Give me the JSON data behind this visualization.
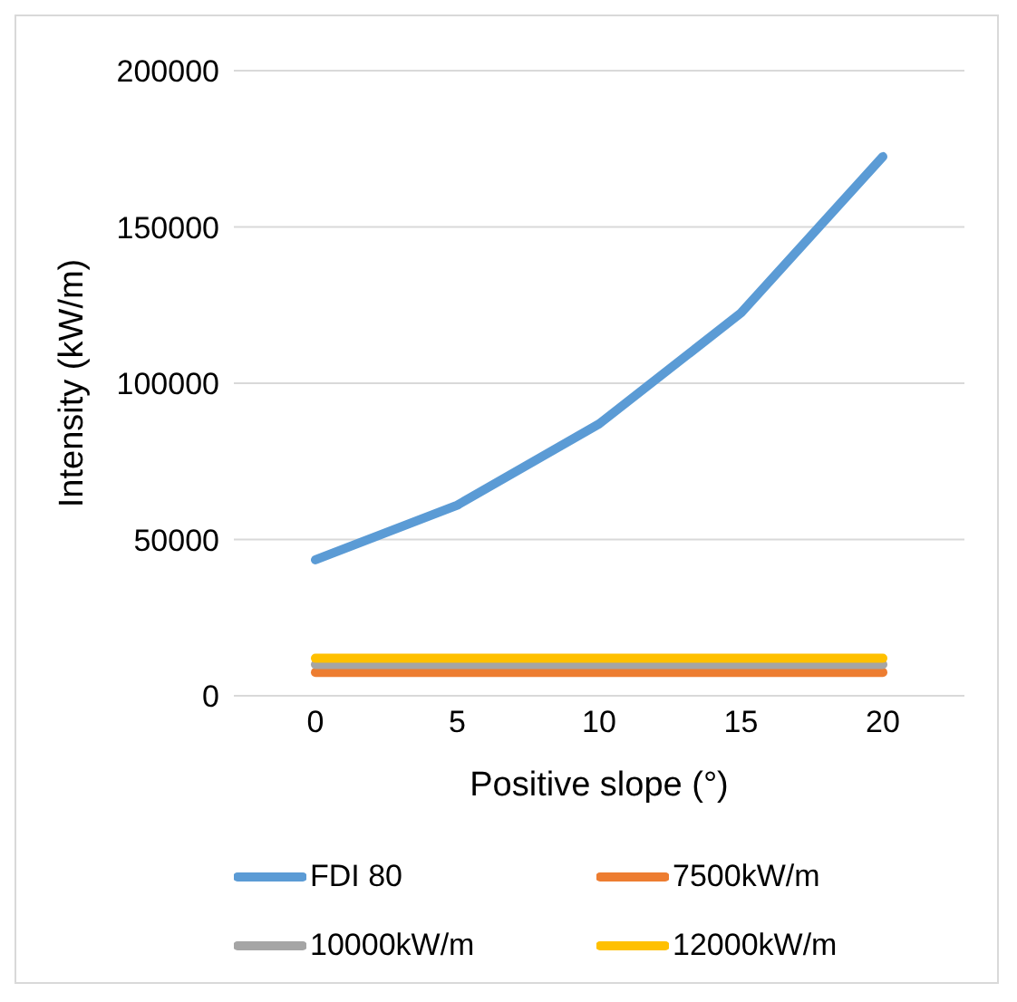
{
  "chart_data": {
    "type": "line",
    "xlabel": "Positive slope (°)",
    "ylabel": "Intensity (kW/m)",
    "categories": [
      "0",
      "5",
      "10",
      "15",
      "20"
    ],
    "series": [
      {
        "name": "FDI 80",
        "color": "#5b9bd5",
        "values": [
          43500,
          61000,
          87000,
          122500,
          172500
        ]
      },
      {
        "name": "7500kW/m",
        "color": "#ed7d31",
        "values": [
          7500,
          7500,
          7500,
          7500,
          7500
        ]
      },
      {
        "name": "10000kW/m",
        "color": "#a5a5a5",
        "values": [
          10000,
          10000,
          10000,
          10000,
          10000
        ]
      },
      {
        "name": "12000kW/m",
        "color": "#ffc000",
        "values": [
          12000,
          12000,
          12000,
          12000,
          12000
        ]
      }
    ],
    "ylim": [
      0,
      200000
    ],
    "yticks": [
      0,
      50000,
      100000,
      150000,
      200000
    ],
    "grid": "y",
    "legend": "bottom",
    "marker": "none",
    "line_style": "solid"
  }
}
